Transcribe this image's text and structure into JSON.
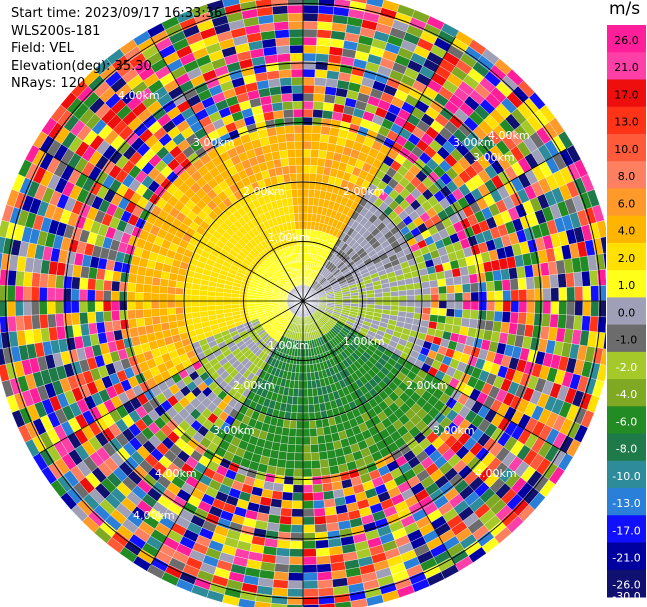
{
  "meta": {
    "start_time": "Start time: 2023/09/17 16:33:36",
    "station": "WLS200s-181",
    "field": "Field: VEL",
    "elevation": "Elevation(deg): 35.30",
    "nrays": "NRays: 120"
  },
  "colorbar": {
    "unit": "m/s",
    "ticks": [
      "26.0",
      "21.0",
      "17.0",
      "13.0",
      "10.0",
      "8.0",
      "6.0",
      "4.0",
      "2.0",
      "1.0",
      "0.0",
      "-1.0",
      "-2.0",
      "-4.0",
      "-6.0",
      "-8.0",
      "-10.0",
      "-13.0",
      "-17.0",
      "-21.0",
      "-26.0",
      "-30.0"
    ],
    "colors": [
      "#ff1f9a",
      "#ff3fa8",
      "#ee0e0e",
      "#ff3318",
      "#ff5a3a",
      "#ff8060",
      "#ff9a2a",
      "#ffb400",
      "#ffe000",
      "#ffff1a",
      "#9fa0b8",
      "#6c6c6c",
      "#a6c92a",
      "#7fa823",
      "#238b23",
      "#1f7a4a",
      "#2d8b9a",
      "#2a7fd8",
      "#1010ff",
      "#0000a0",
      "#101070"
    ]
  },
  "chart_data": {
    "type": "ppi",
    "field": "VEL",
    "unit": "m/s",
    "range_ring_labels": [
      "1.00km",
      "1.00km",
      "1.00km",
      "2.00km",
      "2.00km",
      "2.00km",
      "2.00km",
      "3.00km",
      "3.00km",
      "3.00km",
      "3.00km",
      "3.00km",
      "4.00km",
      "4.00km",
      "4.00km",
      "4.00km",
      "4.00km"
    ],
    "range_rings_km": [
      1,
      2,
      3,
      4,
      5
    ],
    "n_rays": 120,
    "elevation_deg": 35.3,
    "pattern": "near field: yellow/orange (positive) to north-west, green (negative) to south, grey near zero; outer ranges noisy multicolor"
  }
}
